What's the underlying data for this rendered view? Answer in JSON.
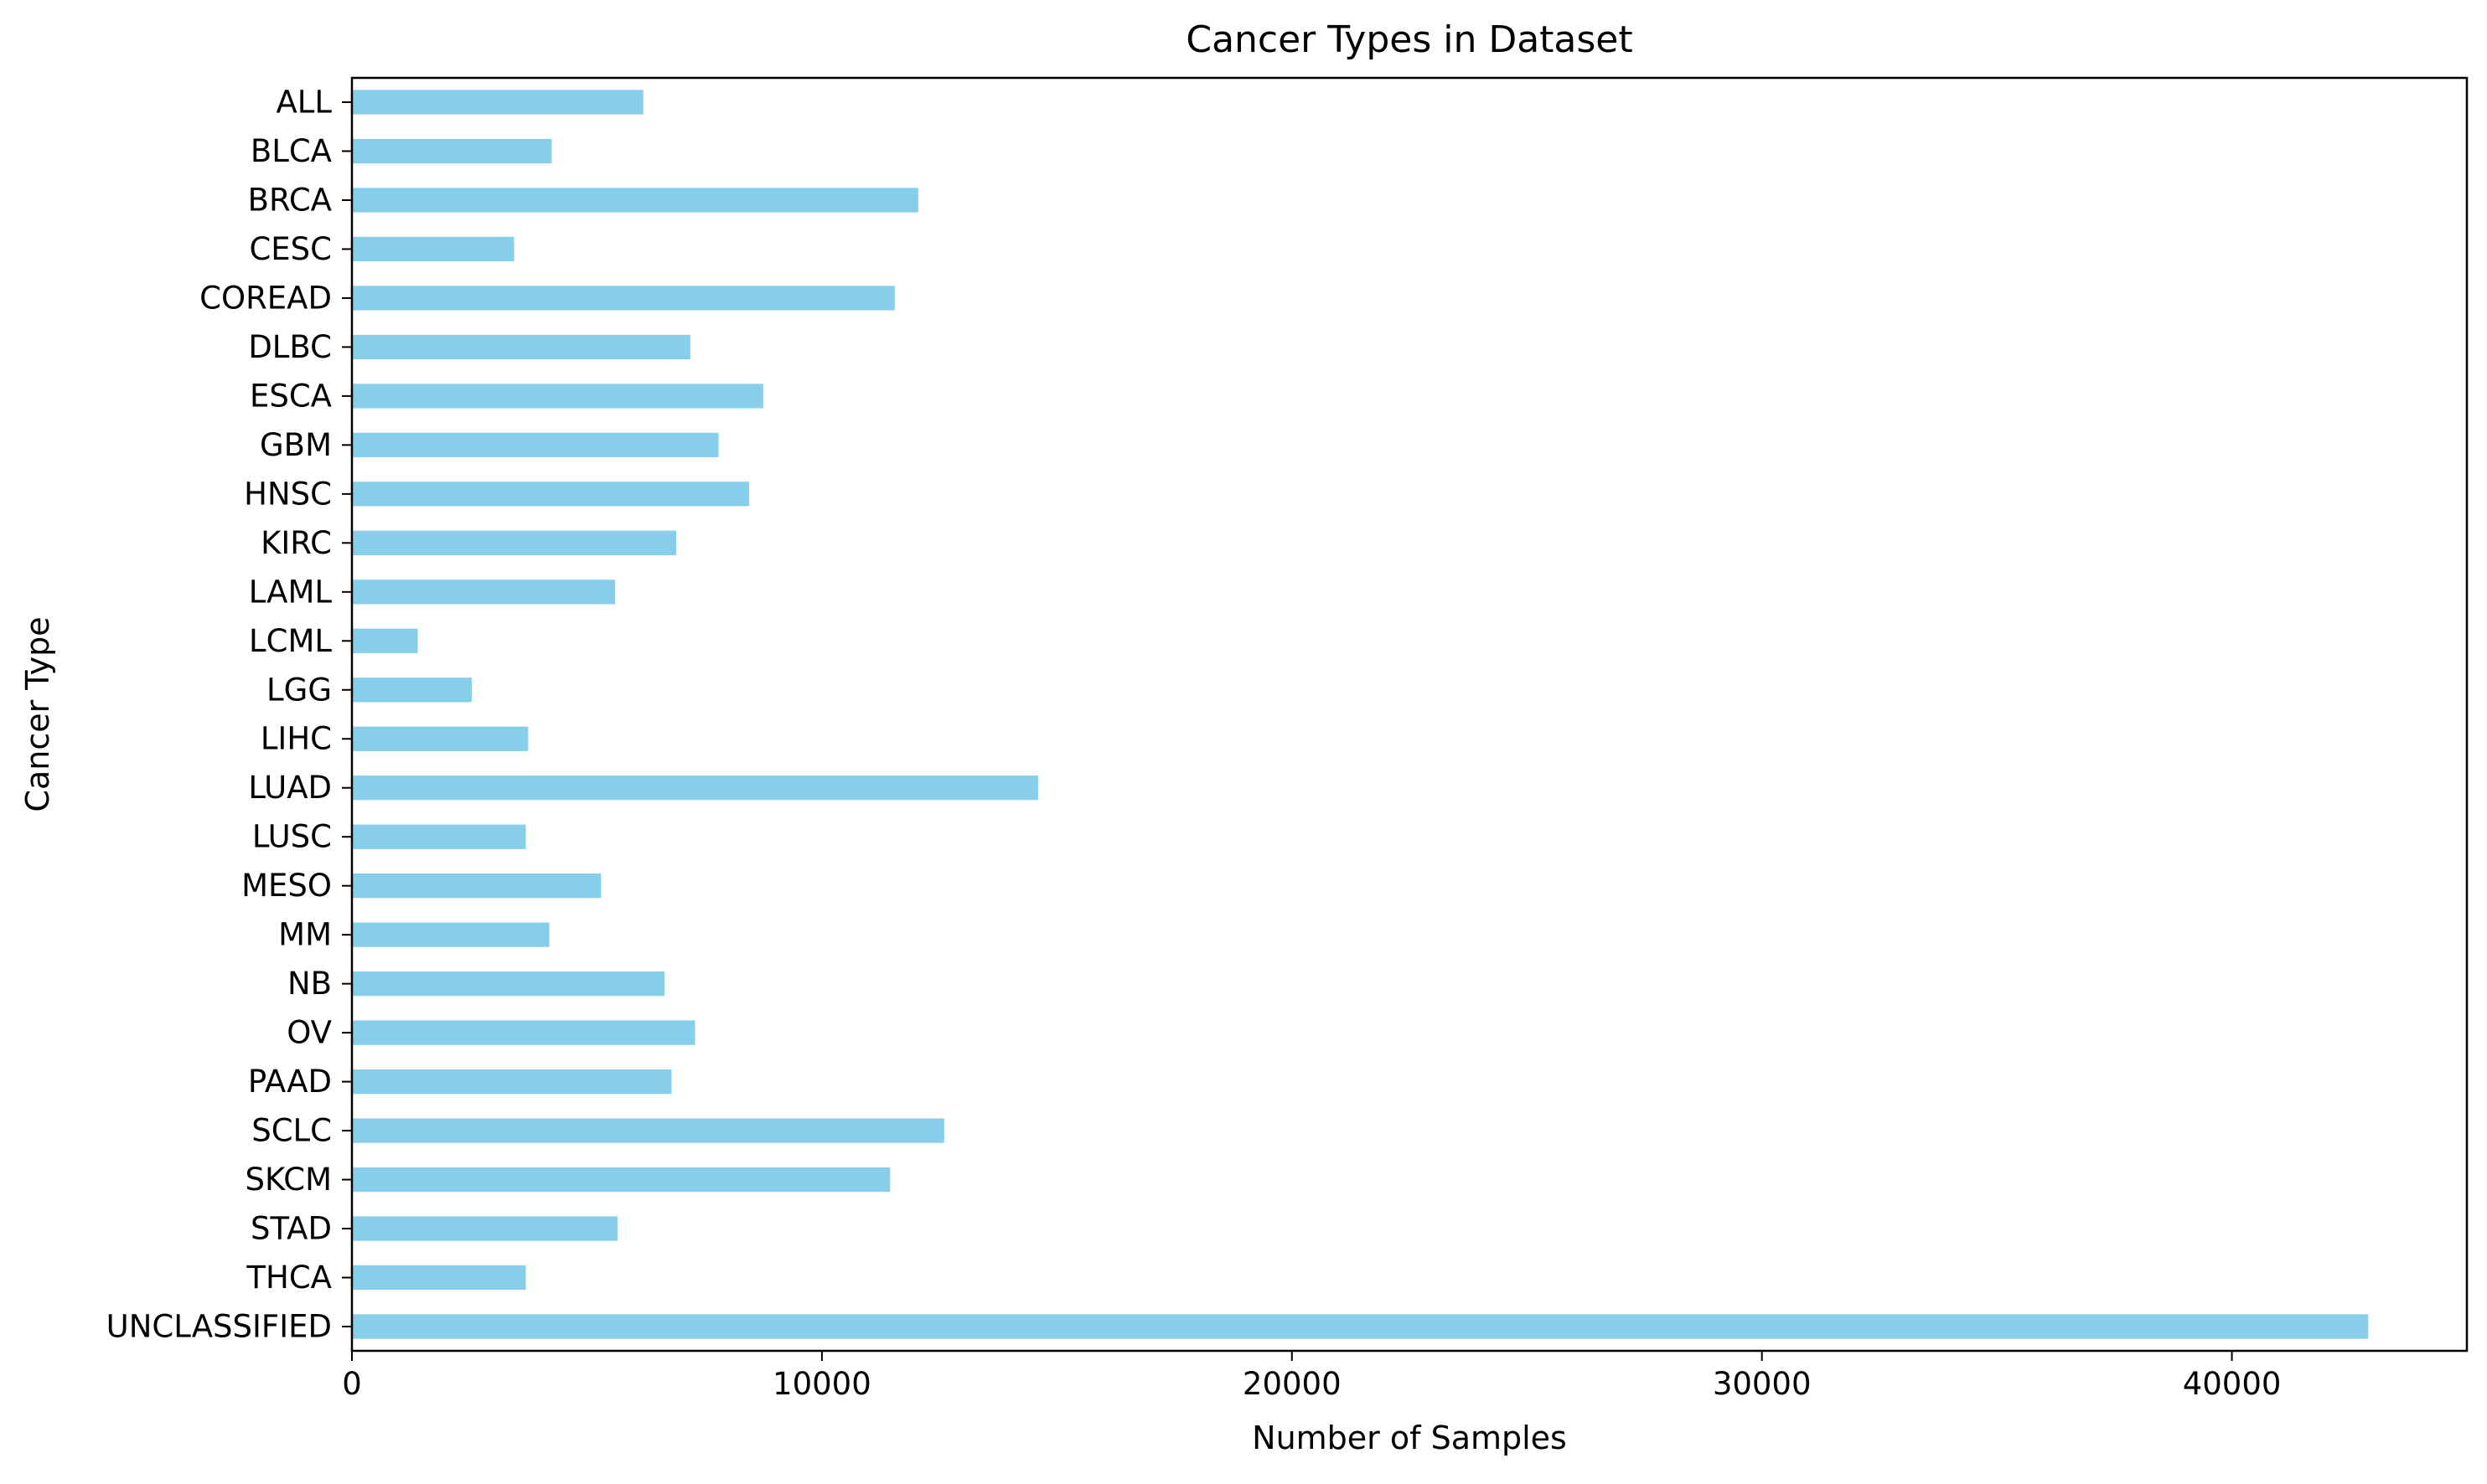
{
  "chart_data": {
    "type": "bar",
    "orientation": "horizontal",
    "title": "Cancer Types in Dataset",
    "xlabel": "Number of Samples",
    "ylabel": "Cancer Type",
    "categories": [
      "ALL",
      "BLCA",
      "BRCA",
      "CESC",
      "COREAD",
      "DLBC",
      "ESCA",
      "GBM",
      "HNSC",
      "KIRC",
      "LAML",
      "LCML",
      "LGG",
      "LIHC",
      "LUAD",
      "LUSC",
      "MESO",
      "MM",
      "NB",
      "OV",
      "PAAD",
      "SCLC",
      "SKCM",
      "STAD",
      "THCA",
      "UNCLASSIFIED"
    ],
    "values": [
      6200,
      4250,
      12050,
      3450,
      11550,
      7200,
      8750,
      7800,
      8450,
      6900,
      5600,
      1400,
      2550,
      3750,
      14600,
      3700,
      5300,
      4200,
      6650,
      7300,
      6800,
      12600,
      11450,
      5650,
      3700,
      42900
    ],
    "xlim": [
      0,
      45000
    ],
    "xticks": [
      0,
      10000,
      20000,
      30000,
      40000
    ],
    "xtick_labels": [
      "0",
      "10000",
      "20000",
      "30000",
      "40000"
    ],
    "bar_color": "#87CEEB",
    "grid": false,
    "legend": "none"
  }
}
